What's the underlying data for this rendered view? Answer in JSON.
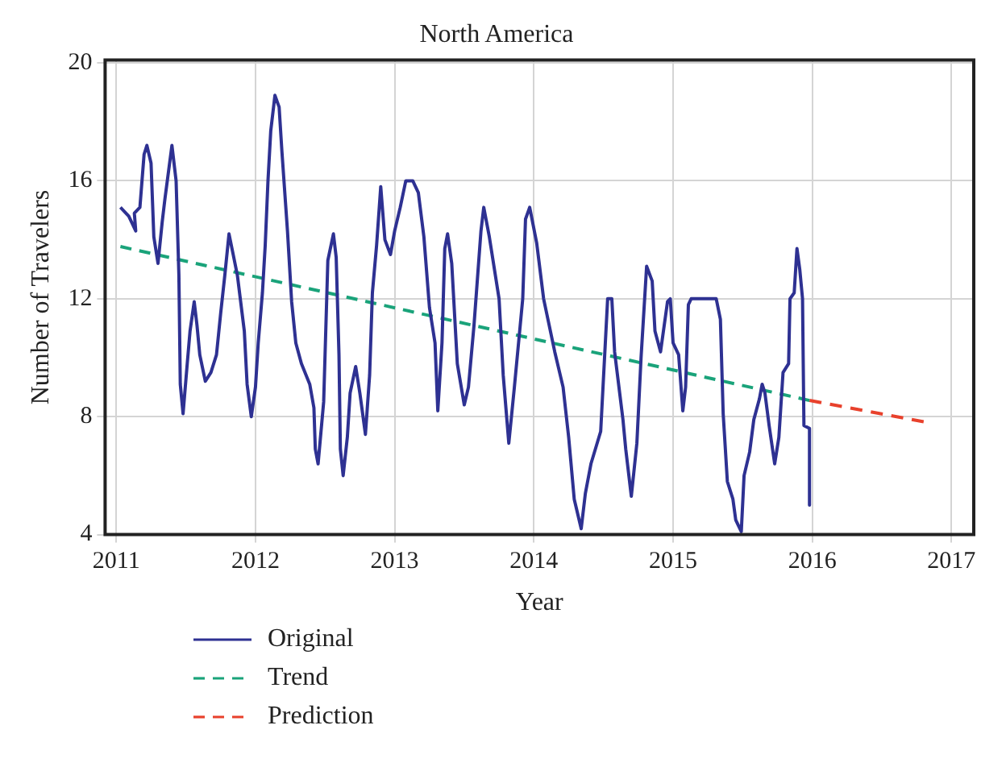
{
  "chart_data": {
    "type": "line",
    "title": "North America",
    "xlabel": "Year",
    "ylabel": "Number of Travelers",
    "xlim": [
      2010.92,
      2017.16
    ],
    "xticks": [
      2011,
      2012,
      2013,
      2014,
      2015,
      2016,
      2017
    ],
    "ylim": [
      4,
      20.1
    ],
    "yticks": [
      4,
      8,
      12,
      16,
      20
    ],
    "grid": true,
    "legend": "bottom left",
    "marker": "none",
    "series": [
      {
        "name": "Original",
        "color": "#2e3192",
        "line_style": "solid",
        "x": [
          2011.03,
          2011.09,
          2011.14,
          2011.13,
          2011.17,
          2011.2,
          2011.22,
          2011.25,
          2011.27,
          2011.3,
          2011.33,
          2011.35,
          2011.4,
          2011.43,
          2011.45,
          2011.46,
          2011.48,
          2011.51,
          2011.53,
          2011.56,
          2011.58,
          2011.6,
          2011.64,
          2011.68,
          2011.72,
          2011.75,
          2011.78,
          2011.81,
          2011.84,
          2011.87,
          2011.92,
          2011.94,
          2011.97,
          2012.0,
          2012.02,
          2012.05,
          2012.07,
          2012.09,
          2012.11,
          2012.14,
          2012.17,
          2012.19,
          2012.23,
          2012.26,
          2012.29,
          2012.33,
          2012.39,
          2012.42,
          2012.43,
          2012.45,
          2012.49,
          2012.5,
          2012.52,
          2012.56,
          2012.58,
          2012.6,
          2012.61,
          2012.63,
          2012.66,
          2012.68,
          2012.72,
          2012.75,
          2012.79,
          2012.82,
          2012.84,
          2012.87,
          2012.9,
          2012.93,
          2012.97,
          2013.0,
          2013.04,
          2013.08,
          2013.13,
          2013.17,
          2013.21,
          2013.25,
          2013.29,
          2013.31,
          2013.34,
          2013.36,
          2013.38,
          2013.41,
          2013.45,
          2013.5,
          2013.53,
          2013.57,
          2013.62,
          2013.64,
          2013.68,
          2013.75,
          2013.78,
          2013.82,
          2013.86,
          2013.92,
          2013.94,
          2013.97,
          2014.02,
          2014.07,
          2014.15,
          2014.21,
          2014.25,
          2014.29,
          2014.34,
          2014.37,
          2014.41,
          2014.48,
          2014.53,
          2014.56,
          2014.58,
          2014.64,
          2014.66,
          2014.7,
          2014.74,
          2014.77,
          2014.81,
          2014.85,
          2014.87,
          2014.91,
          2014.96,
          2014.98,
          2015.0,
          2015.04,
          2015.07,
          2015.09,
          2015.11,
          2015.13,
          2015.31,
          2015.34,
          2015.36,
          2015.39,
          2015.43,
          2015.45,
          2015.49,
          2015.51,
          2015.55,
          2015.58,
          2015.62,
          2015.64,
          2015.66,
          2015.69,
          2015.73,
          2015.76,
          2015.79,
          2015.83,
          2015.84,
          2015.87,
          2015.89,
          2015.91,
          2015.93,
          2015.94,
          2015.98,
          2015.98
        ],
        "values": [
          15.1,
          14.8,
          14.3,
          14.9,
          15.1,
          16.9,
          17.2,
          16.6,
          14.1,
          13.2,
          14.6,
          15.4,
          17.2,
          16.0,
          12.8,
          9.1,
          8.1,
          9.8,
          10.9,
          11.9,
          11.1,
          10.1,
          9.2,
          9.5,
          10.1,
          11.5,
          12.8,
          14.2,
          13.5,
          12.8,
          10.9,
          9.1,
          8.0,
          9.0,
          10.5,
          12.2,
          13.8,
          16.0,
          17.7,
          18.9,
          18.5,
          17.0,
          14.3,
          11.9,
          10.5,
          9.8,
          9.1,
          8.3,
          6.9,
          6.4,
          8.5,
          10.1,
          13.3,
          14.2,
          13.4,
          10.1,
          6.9,
          6.0,
          7.3,
          8.8,
          9.7,
          8.8,
          7.4,
          9.4,
          12.2,
          13.8,
          15.8,
          14.0,
          13.5,
          14.3,
          15.1,
          16.0,
          16.0,
          15.6,
          14.1,
          11.7,
          10.5,
          8.2,
          10.5,
          13.7,
          14.2,
          13.2,
          9.8,
          8.4,
          9.0,
          11.1,
          14.3,
          15.1,
          14.1,
          12.0,
          9.4,
          7.1,
          9.0,
          12.0,
          14.7,
          15.1,
          13.9,
          12.0,
          10.2,
          9.0,
          7.3,
          5.2,
          4.2,
          5.4,
          6.4,
          7.5,
          12.0,
          12.0,
          10.2,
          7.9,
          6.9,
          5.3,
          7.1,
          10.0,
          13.1,
          12.6,
          10.9,
          10.2,
          11.9,
          12.0,
          10.5,
          10.1,
          8.2,
          9.0,
          11.8,
          12.0,
          12.0,
          11.3,
          8.1,
          5.8,
          5.2,
          4.5,
          4.1,
          6.0,
          6.8,
          7.9,
          8.6,
          9.1,
          8.8,
          7.7,
          6.4,
          7.3,
          9.5,
          9.8,
          12.0,
          12.2,
          13.7,
          13.0,
          12.0,
          7.7,
          7.6,
          5.0
        ]
      },
      {
        "name": "Trend",
        "color": "#1aa37a",
        "line_style": "dashed",
        "x": [
          2011.03,
          2015.98
        ],
        "values": [
          13.77,
          8.55
        ]
      },
      {
        "name": "Prediction",
        "color": "#e8412c",
        "line_style": "dashed",
        "x": [
          2015.98,
          2016.8
        ],
        "values": [
          8.55,
          7.83
        ]
      }
    ]
  }
}
